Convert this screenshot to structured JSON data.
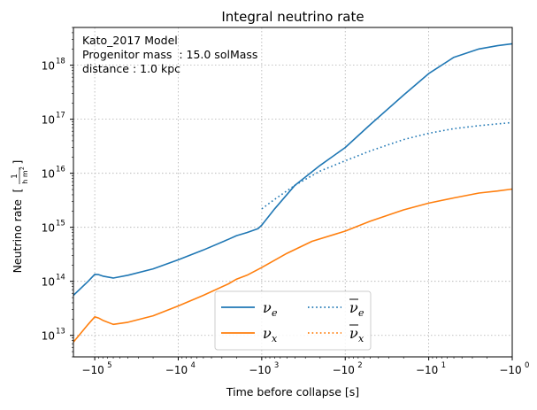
{
  "chart_data": {
    "type": "line",
    "title": "Integral neutrino rate",
    "xlabel": "Time before collapse [s]",
    "ylabel": "Neutrino rate",
    "ylabel_unit_num": "1",
    "ylabel_unit_den": "h m",
    "ylabel_unit_exp": "2",
    "xscale": "symlog-negative",
    "yscale": "log",
    "xlim": [
      -180000,
      -1
    ],
    "ylim": [
      4000000000000.0,
      5e+18
    ],
    "grid": true,
    "legend_placement": "lower center",
    "annotations": [
      "Kato_2017 Model",
      "Progenitor mass  : 15.0 solMass",
      "distance : 1.0 kpc"
    ],
    "x_ticks": [
      {
        "value": -100000,
        "base": "−10",
        "exp": "5"
      },
      {
        "value": -10000,
        "base": "−10",
        "exp": "4"
      },
      {
        "value": -1000,
        "base": "−10",
        "exp": "3"
      },
      {
        "value": -100,
        "base": "−10",
        "exp": "2"
      },
      {
        "value": -10,
        "base": "−10",
        "exp": "1"
      },
      {
        "value": -1,
        "base": "−10",
        "exp": "0"
      }
    ],
    "y_ticks": [
      {
        "value": 10000000000000.0,
        "base": "10",
        "exp": "13"
      },
      {
        "value": 100000000000000.0,
        "base": "10",
        "exp": "14"
      },
      {
        "value": 1000000000000000.0,
        "base": "10",
        "exp": "15"
      },
      {
        "value": 1e+16,
        "base": "10",
        "exp": "16"
      },
      {
        "value": 1e+17,
        "base": "10",
        "exp": "17"
      },
      {
        "value": 1e+18,
        "base": "10",
        "exp": "18"
      }
    ],
    "series": [
      {
        "name": "ν",
        "sub": "e",
        "bar": false,
        "color": "#1f77b4",
        "dash": "solid",
        "x": [
          -180000,
          -120000,
          -100000,
          -90000,
          -80000,
          -60000,
          -40000,
          -20000,
          -10000,
          -5000,
          -2500,
          -2000,
          -1500,
          -1100,
          -1000,
          -700,
          -400,
          -200,
          -100,
          -50,
          -20,
          -10,
          -5,
          -2.5,
          -1.5,
          -1
        ],
        "y": [
          55000000000000.0,
          100000000000000.0,
          135000000000000.0,
          133000000000000.0,
          125000000000000.0,
          115000000000000.0,
          130000000000000.0,
          170000000000000.0,
          250000000000000.0,
          380000000000000.0,
          600000000000000.0,
          700000000000000.0,
          800000000000000.0,
          950000000000000.0,
          1100000000000000.0,
          2200000000000000.0,
          6000000000000000.0,
          1.4e+16,
          3e+16,
          8e+16,
          2.8e+17,
          7e+17,
          1.4e+18,
          2e+18,
          2.3e+18,
          2.5e+18
        ]
      },
      {
        "name": "ν",
        "sub": "x",
        "bar": false,
        "color": "#ff7f0e",
        "dash": "solid",
        "x": [
          -180000,
          -120000,
          -100000,
          -90000,
          -80000,
          -60000,
          -40000,
          -20000,
          -10000,
          -5000,
          -2500,
          -2000,
          -1500,
          -1000,
          -500,
          -250,
          -100,
          -50,
          -20,
          -10,
          -5,
          -2.5,
          -1.5,
          -1
        ],
        "y": [
          7500000000000.0,
          16000000000000.0,
          22000000000000.0,
          21000000000000.0,
          19000000000000.0,
          16000000000000.0,
          17500000000000.0,
          23000000000000.0,
          35000000000000.0,
          55000000000000.0,
          90000000000000.0,
          110000000000000.0,
          130000000000000.0,
          180000000000000.0,
          330000000000000.0,
          550000000000000.0,
          850000000000000.0,
          1300000000000000.0,
          2100000000000000.0,
          2800000000000000.0,
          3500000000000000.0,
          4300000000000000.0,
          4700000000000000.0,
          5100000000000000.0
        ]
      },
      {
        "name": "ν",
        "sub": "e",
        "bar": true,
        "color": "#1f77b4",
        "dash": "dotted",
        "x": [
          -1000,
          -700,
          -400,
          -200,
          -100,
          -50,
          -20,
          -10,
          -5,
          -2.5,
          -1.5,
          -1
        ],
        "y": [
          2200000000000000.0,
          3300000000000000.0,
          6000000000000000.0,
          1.1e+16,
          1.7e+16,
          2.6e+16,
          4.2e+16,
          5.5e+16,
          6.7e+16,
          7.6e+16,
          8.2e+16,
          8.7e+16
        ]
      },
      {
        "name": "ν",
        "sub": "x",
        "bar": true,
        "color": "#ff7f0e",
        "dash": "dotted",
        "x": [],
        "y": []
      }
    ]
  }
}
